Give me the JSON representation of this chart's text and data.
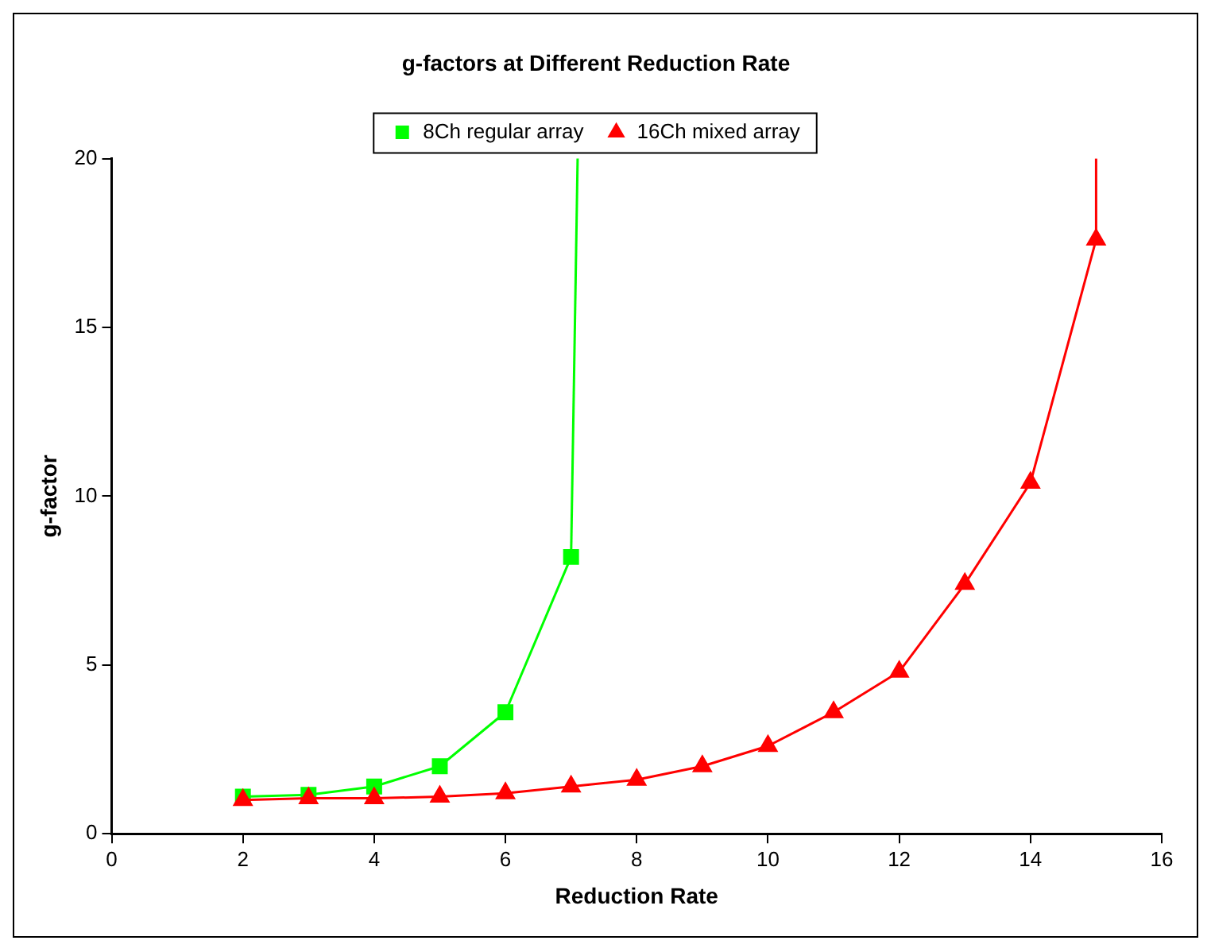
{
  "chart_data": {
    "type": "line",
    "title": "g-factors at Different Reduction Rate",
    "xlabel": "Reduction Rate",
    "ylabel": "g-factor",
    "series": [
      {
        "name": "8Ch regular array",
        "color": "#00ff00",
        "marker": "square",
        "x": [
          2,
          3,
          4,
          5,
          6,
          7
        ],
        "values": [
          1.1,
          1.15,
          1.4,
          2.0,
          3.6,
          8.2
        ]
      },
      {
        "name": "16Ch mixed array",
        "color": "#ff0000",
        "marker": "triangle",
        "x": [
          2,
          3,
          4,
          5,
          6,
          7,
          8,
          9,
          10,
          11,
          12,
          13,
          14,
          15
        ],
        "values": [
          1.0,
          1.05,
          1.05,
          1.1,
          1.2,
          1.4,
          1.6,
          2.0,
          2.6,
          3.6,
          4.8,
          7.4,
          10.4,
          17.6
        ]
      },
      {
        "color": "#00ff00",
        "marker": "none",
        "x": [
          7,
          7.1
        ],
        "values": [
          8.2,
          20
        ]
      },
      {
        "color": "#ff0000",
        "marker": "none",
        "x": [
          15,
          15
        ],
        "values": [
          17.6,
          20
        ]
      }
    ],
    "xlim": [
      0,
      16
    ],
    "xticks": [
      0,
      2,
      4,
      6,
      8,
      10,
      12,
      14,
      16
    ],
    "ylim": [
      0,
      20
    ],
    "yticks": [
      0,
      5,
      10,
      15,
      20
    ],
    "grid": false,
    "legend": "top",
    "line_style": "solid"
  }
}
